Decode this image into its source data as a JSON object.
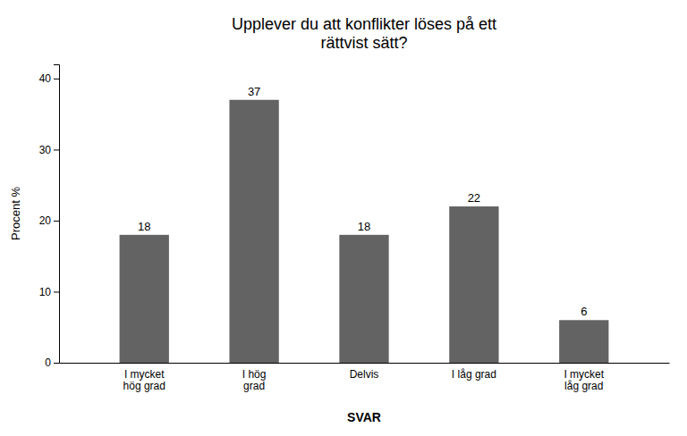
{
  "chart_data": {
    "type": "bar",
    "title": "Upplever du att konflikter löses på ett\nrättvist sätt?",
    "categories": [
      "I mycket\nhög grad",
      "I hög\ngrad",
      "Delvis",
      "I låg grad",
      "I mycket\nlåg grad"
    ],
    "values": [
      18,
      37,
      18,
      22,
      6
    ],
    "color": "#636363",
    "xlabel": "SVAR",
    "ylabel": "Procent %",
    "ylim": [
      0,
      42
    ],
    "yticks": [
      0,
      10,
      20,
      30,
      40
    ],
    "grid": false,
    "data_labels": true
  }
}
